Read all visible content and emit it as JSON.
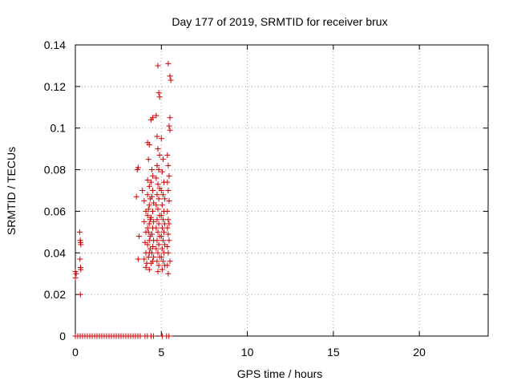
{
  "chart_data": {
    "type": "scatter",
    "title": "Day 177 of 2019, SRMTID for receiver brux",
    "xlabel": "GPS time / hours",
    "ylabel": "SRMTID / TECUs",
    "xlim": [
      0,
      24
    ],
    "ylim": [
      0,
      0.14
    ],
    "xticks": [
      0,
      5,
      10,
      15,
      20
    ],
    "yticks": [
      0,
      0.02,
      0.04,
      0.06,
      0.08,
      0.1,
      0.12,
      0.14
    ],
    "xtick_labels": [
      "0",
      "5",
      "10",
      "15",
      "20"
    ],
    "ytick_labels": [
      "0",
      "0.02",
      "0.04",
      "0.06",
      "0.08",
      "0.1",
      "0.12",
      "0.14"
    ],
    "grid": true,
    "marker": "+",
    "color": "#cc0000",
    "series": [
      {
        "name": "SRMTID",
        "points": [
          [
            0.0,
            0.031
          ],
          [
            0.05,
            0.03
          ],
          [
            0.0,
            0.028
          ],
          [
            0.25,
            0.05
          ],
          [
            0.28,
            0.046
          ],
          [
            0.3,
            0.045
          ],
          [
            0.32,
            0.044
          ],
          [
            0.27,
            0.037
          ],
          [
            0.3,
            0.033
          ],
          [
            0.32,
            0.032
          ],
          [
            0.29,
            0.02
          ],
          [
            3.6,
            0.08
          ],
          [
            3.65,
            0.081
          ],
          [
            3.55,
            0.067
          ],
          [
            3.7,
            0.048
          ],
          [
            3.65,
            0.037
          ],
          [
            3.9,
            0.07
          ],
          [
            4.0,
            0.065
          ],
          [
            4.1,
            0.06
          ],
          [
            4.0,
            0.055
          ],
          [
            4.1,
            0.05
          ],
          [
            4.05,
            0.045
          ],
          [
            4.1,
            0.04
          ],
          [
            4.0,
            0.037
          ],
          [
            4.15,
            0.035
          ],
          [
            4.1,
            0.033
          ],
          [
            4.2,
            0.093
          ],
          [
            4.3,
            0.092
          ],
          [
            4.25,
            0.085
          ],
          [
            4.2,
            0.075
          ],
          [
            4.3,
            0.072
          ],
          [
            4.2,
            0.068
          ],
          [
            4.35,
            0.066
          ],
          [
            4.3,
            0.063
          ],
          [
            4.25,
            0.061
          ],
          [
            4.2,
            0.058
          ],
          [
            4.35,
            0.056
          ],
          [
            4.3,
            0.054
          ],
          [
            4.2,
            0.052
          ],
          [
            4.25,
            0.05
          ],
          [
            4.35,
            0.048
          ],
          [
            4.3,
            0.046
          ],
          [
            4.2,
            0.044
          ],
          [
            4.35,
            0.042
          ],
          [
            4.3,
            0.04
          ],
          [
            4.25,
            0.038
          ],
          [
            4.4,
            0.035
          ],
          [
            4.3,
            0.032
          ],
          [
            4.4,
            0.104
          ],
          [
            4.5,
            0.105
          ],
          [
            4.45,
            0.08
          ],
          [
            4.5,
            0.077
          ],
          [
            4.4,
            0.074
          ],
          [
            4.5,
            0.07
          ],
          [
            4.45,
            0.067
          ],
          [
            4.55,
            0.064
          ],
          [
            4.5,
            0.06
          ],
          [
            4.4,
            0.057
          ],
          [
            4.55,
            0.055
          ],
          [
            4.5,
            0.052
          ],
          [
            4.45,
            0.049
          ],
          [
            4.55,
            0.046
          ],
          [
            4.5,
            0.043
          ],
          [
            4.45,
            0.04
          ],
          [
            4.55,
            0.038
          ],
          [
            4.5,
            0.036
          ],
          [
            4.7,
            0.106
          ],
          [
            4.8,
            0.13
          ],
          [
            4.85,
            0.117
          ],
          [
            4.9,
            0.115
          ],
          [
            4.75,
            0.096
          ],
          [
            4.8,
            0.09
          ],
          [
            4.9,
            0.087
          ],
          [
            4.75,
            0.082
          ],
          [
            4.85,
            0.08
          ],
          [
            4.7,
            0.076
          ],
          [
            4.8,
            0.073
          ],
          [
            4.9,
            0.071
          ],
          [
            4.75,
            0.068
          ],
          [
            4.85,
            0.066
          ],
          [
            4.7,
            0.063
          ],
          [
            4.8,
            0.061
          ],
          [
            4.9,
            0.058
          ],
          [
            4.75,
            0.056
          ],
          [
            4.85,
            0.054
          ],
          [
            4.7,
            0.052
          ],
          [
            4.8,
            0.05
          ],
          [
            4.9,
            0.048
          ],
          [
            4.75,
            0.046
          ],
          [
            4.85,
            0.044
          ],
          [
            4.7,
            0.042
          ],
          [
            4.8,
            0.04
          ],
          [
            4.9,
            0.038
          ],
          [
            4.75,
            0.036
          ],
          [
            4.85,
            0.034
          ],
          [
            4.8,
            0.031
          ],
          [
            5.0,
            0.095
          ],
          [
            5.1,
            0.085
          ],
          [
            5.05,
            0.079
          ],
          [
            5.15,
            0.074
          ],
          [
            5.0,
            0.07
          ],
          [
            5.1,
            0.068
          ],
          [
            5.2,
            0.066
          ],
          [
            5.05,
            0.063
          ],
          [
            5.15,
            0.06
          ],
          [
            5.0,
            0.058
          ],
          [
            5.1,
            0.056
          ],
          [
            5.2,
            0.054
          ],
          [
            5.05,
            0.052
          ],
          [
            5.15,
            0.05
          ],
          [
            5.0,
            0.048
          ],
          [
            5.1,
            0.046
          ],
          [
            5.2,
            0.044
          ],
          [
            5.05,
            0.042
          ],
          [
            5.15,
            0.04
          ],
          [
            5.0,
            0.038
          ],
          [
            5.1,
            0.036
          ],
          [
            5.2,
            0.034
          ],
          [
            5.05,
            0.032
          ],
          [
            5.4,
            0.131
          ],
          [
            5.5,
            0.125
          ],
          [
            5.55,
            0.123
          ],
          [
            5.5,
            0.105
          ],
          [
            5.45,
            0.101
          ],
          [
            5.5,
            0.099
          ],
          [
            5.35,
            0.087
          ],
          [
            5.4,
            0.082
          ],
          [
            5.45,
            0.077
          ],
          [
            5.35,
            0.074
          ],
          [
            5.4,
            0.07
          ],
          [
            5.45,
            0.065
          ],
          [
            5.35,
            0.06
          ],
          [
            5.4,
            0.056
          ],
          [
            5.45,
            0.054
          ],
          [
            5.35,
            0.052
          ],
          [
            5.4,
            0.049
          ],
          [
            5.45,
            0.046
          ],
          [
            5.35,
            0.043
          ],
          [
            5.4,
            0.04
          ],
          [
            5.5,
            0.036
          ],
          [
            5.35,
            0.034
          ],
          [
            5.4,
            0.03
          ]
        ],
        "zero_baseline_segments": [
          [
            0.0,
            3.9
          ],
          [
            4.05,
            4.2
          ],
          [
            4.4,
            4.55
          ],
          [
            5.05,
            5.15
          ],
          [
            5.3,
            5.5
          ]
        ]
      }
    ]
  }
}
